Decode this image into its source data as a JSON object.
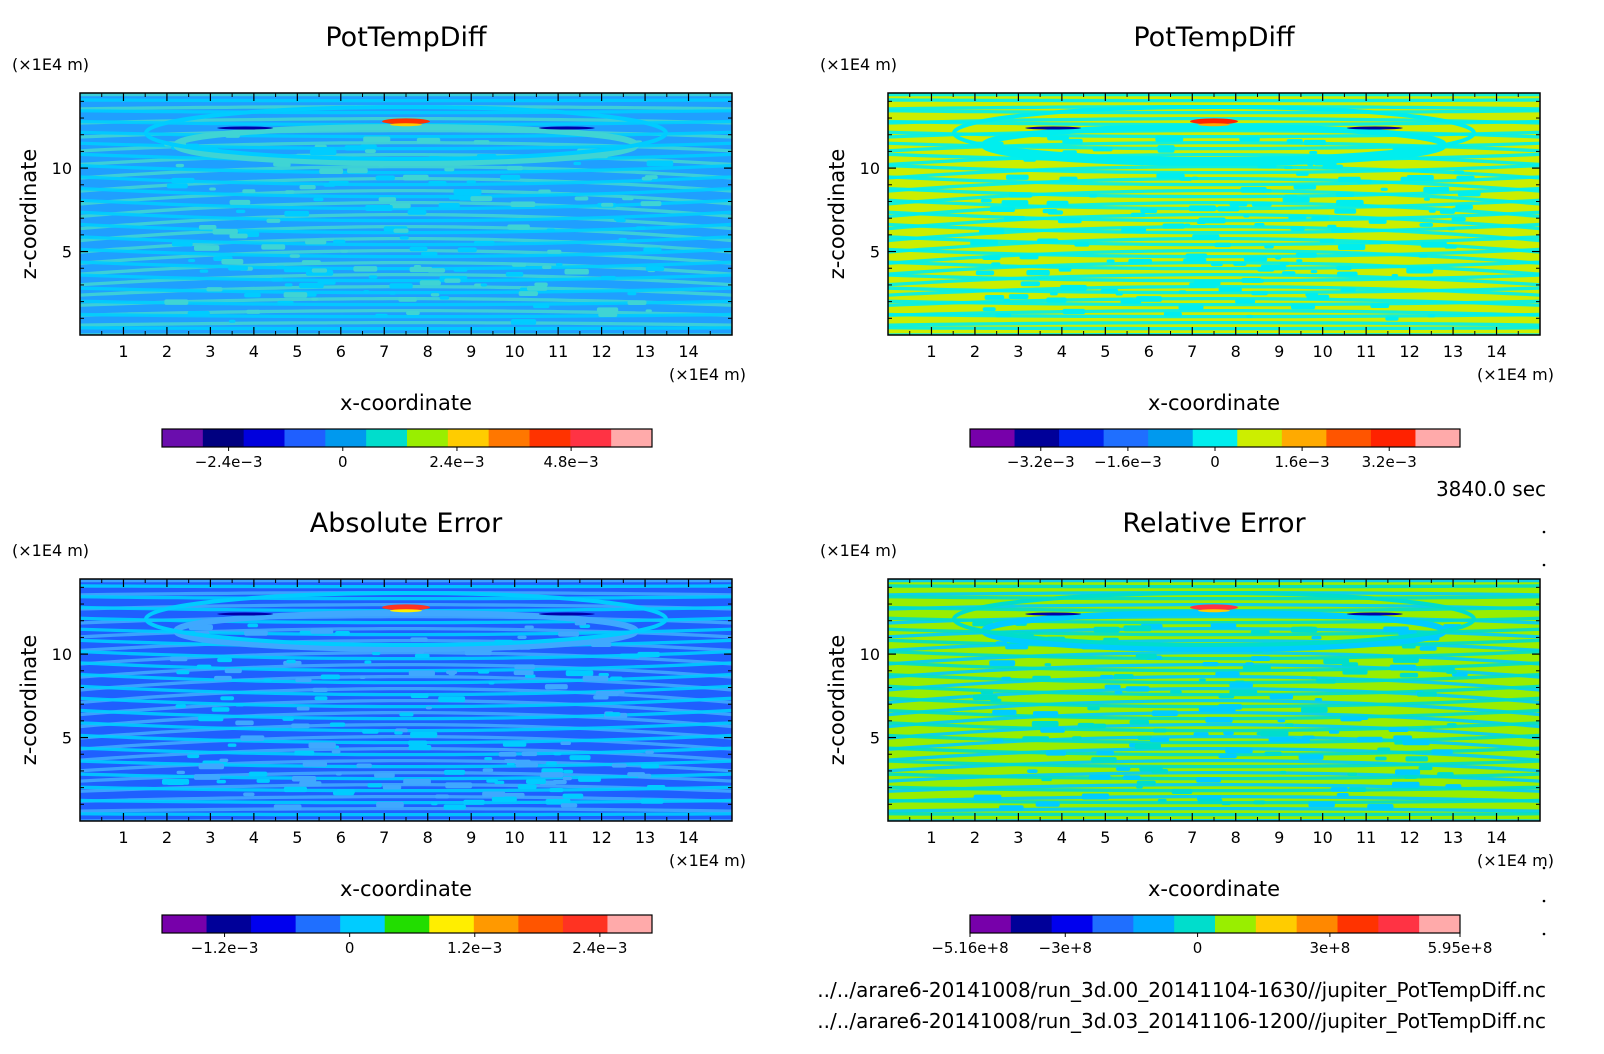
{
  "chart_data": [
    {
      "type": "heatmap",
      "title": "PotTempDiff",
      "ylabel": "z-coordinate",
      "xlabel": "x-coordinate",
      "x_unit": "(×1E4 m)",
      "y_unit": "(×1E4 m)",
      "xlim": [
        0,
        15
      ],
      "ylim": [
        0,
        14.5
      ],
      "x_ticks": [
        "1",
        "2",
        "3",
        "4",
        "5",
        "6",
        "7",
        "8",
        "9",
        "10",
        "11",
        "12",
        "13",
        "14"
      ],
      "y_ticks": [
        "5",
        "10"
      ],
      "colorbar_labels": [
        "−2.4e−3",
        "0",
        "2.4e−3",
        "4.8e−3"
      ],
      "colorbar_label_values": [
        -0.0024,
        0,
        0.0024,
        0.0048
      ],
      "colorbar_range": [
        -0.0038,
        0.0065
      ],
      "colorbar_colors": [
        "#6a0dad",
        "#000080",
        "#0000dd",
        "#1f5fff",
        "#0099ee",
        "#00ddcc",
        "#99ee00",
        "#ffcc00",
        "#ff7700",
        "#ff3300",
        "#ff3344",
        "#ffaaaa"
      ],
      "field_palette": [
        "#1f9fff",
        "#3fd4d4",
        "#00ccff"
      ],
      "accent_colors": [
        "#ff3300",
        "#ffcc00",
        "#0000aa"
      ]
    },
    {
      "type": "heatmap",
      "title": "PotTempDiff",
      "ylabel": "z-coordinate",
      "xlabel": "x-coordinate",
      "x_unit": "(×1E4 m)",
      "y_unit": "(×1E4 m)",
      "xlim": [
        0,
        15
      ],
      "ylim": [
        0,
        14.5
      ],
      "x_ticks": [
        "1",
        "2",
        "3",
        "4",
        "5",
        "6",
        "7",
        "8",
        "9",
        "10",
        "11",
        "12",
        "13",
        "14"
      ],
      "y_ticks": [
        "5",
        "10"
      ],
      "colorbar_labels": [
        "−3.2e−3",
        "−1.6e−3",
        "0",
        "1.6e−3",
        "3.2e−3"
      ],
      "colorbar_label_values": [
        -0.0032,
        -0.0016,
        0,
        0.0016,
        0.0032
      ],
      "colorbar_range": [
        -0.0045,
        0.0045
      ],
      "colorbar_colors": [
        "#7700aa",
        "#000099",
        "#0022ee",
        "#1f6fff",
        "#0099ee",
        "#00eeee",
        "#ccee00",
        "#ffaa00",
        "#ff5500",
        "#ff2200",
        "#ffaaaa"
      ],
      "field_palette": [
        "#ccee00",
        "#00eeee",
        "#00eeee"
      ],
      "accent_colors": [
        "#ff2200",
        "#ffaa00",
        "#000099"
      ]
    },
    {
      "type": "heatmap",
      "title": "Absolute Error",
      "ylabel": "z-coordinate",
      "xlabel": "x-coordinate",
      "x_unit": "(×1E4 m)",
      "y_unit": "(×1E4 m)",
      "xlim": [
        0,
        15
      ],
      "ylim": [
        0,
        14.5
      ],
      "x_ticks": [
        "1",
        "2",
        "3",
        "4",
        "5",
        "6",
        "7",
        "8",
        "9",
        "10",
        "11",
        "12",
        "13",
        "14"
      ],
      "y_ticks": [
        "5",
        "10"
      ],
      "colorbar_labels": [
        "−1.2e−3",
        "0",
        "1.2e−3",
        "2.4e−3"
      ],
      "colorbar_label_values": [
        -0.0012,
        0,
        0.0012,
        0.0024
      ],
      "colorbar_range": [
        -0.0018,
        0.0029
      ],
      "colorbar_colors": [
        "#7700aa",
        "#000099",
        "#0000ee",
        "#1f6fff",
        "#00ccff",
        "#22dd00",
        "#ffee00",
        "#ff9900",
        "#ff5500",
        "#ff3322",
        "#ffaaaa"
      ],
      "field_palette": [
        "#1f5fff",
        "#3fa8ff",
        "#00ccff"
      ],
      "accent_colors": [
        "#ff3322",
        "#ffee00",
        "#0000aa"
      ]
    },
    {
      "type": "heatmap",
      "title": "Relative Error",
      "ylabel": "z-coordinate",
      "xlabel": "x-coordinate",
      "x_unit": "(×1E4 m)",
      "y_unit": "(×1E4 m)",
      "xlim": [
        0,
        15
      ],
      "ylim": [
        0,
        14.5
      ],
      "x_ticks": [
        "1",
        "2",
        "3",
        "4",
        "5",
        "6",
        "7",
        "8",
        "9",
        "10",
        "11",
        "12",
        "13",
        "14"
      ],
      "y_ticks": [
        "5",
        "10"
      ],
      "colorbar_labels": [
        "−5.16e+8",
        "−3e+8",
        "0",
        "3e+8",
        "5.95e+8"
      ],
      "colorbar_label_values": [
        -516000000,
        -300000000,
        0,
        300000000,
        595000000
      ],
      "colorbar_range": [
        -516000000,
        595000000
      ],
      "colorbar_colors": [
        "#7700aa",
        "#000099",
        "#0000ee",
        "#1f6fff",
        "#00aaff",
        "#00ddcc",
        "#99ee00",
        "#ffcc00",
        "#ff8800",
        "#ff3300",
        "#ff3344",
        "#ffaaaa"
      ],
      "field_palette": [
        "#99ee00",
        "#00ccff",
        "#00ddcc"
      ],
      "accent_colors": [
        "#ff3344",
        "#ffcc00",
        "#0000aa"
      ]
    }
  ],
  "time_label": "3840.0 sec",
  "files": [
    "../../arare6-20141008/run_3d.00_20141104-1630//jupiter_PotTempDiff.nc",
    "../../arare6-20141008/run_3d.03_20141106-1200//jupiter_PotTempDiff.nc"
  ]
}
